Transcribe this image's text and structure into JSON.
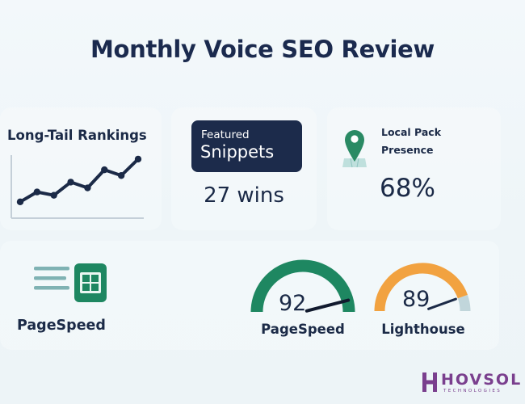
{
  "header": {
    "title": "Monthly Voice SEO Review"
  },
  "long_tail": {
    "title": "Long-Tail Rankings",
    "chart_data": {
      "type": "line",
      "title": "Long-Tail Rankings",
      "x": [
        1,
        2,
        3,
        4,
        5,
        6,
        7,
        8
      ],
      "values": [
        1.0,
        2.2,
        1.8,
        3.4,
        2.7,
        4.9,
        4.2,
        6.2
      ],
      "ylim": [
        0,
        7
      ],
      "xlabel": "",
      "ylabel": ""
    }
  },
  "snippets": {
    "label_small": "Featured",
    "label_big": "Snippets",
    "wins": "27 wins"
  },
  "local_pack": {
    "title_line1": "Local Pack",
    "title_line2": "Presence",
    "value": "68%"
  },
  "pagespeed_card": {
    "label": "PageSpeed"
  },
  "gauges": [
    {
      "label": "PageSpeed",
      "value": "92",
      "score": 92,
      "color": "#1e8761"
    },
    {
      "label": "Lighthouse",
      "value": "89",
      "score": 89,
      "color": "#f2a240",
      "track_color": "#c1d6db"
    }
  ],
  "brand": {
    "name": "HOVSOL",
    "tagline": "TECHNOLOGIES",
    "color": "#7a3f8e"
  },
  "colors": {
    "navy": "#1b2a47",
    "green": "#1e8761",
    "orange": "#f2a240",
    "track": "#c1d6db",
    "sheet_green": "#1e8761"
  }
}
